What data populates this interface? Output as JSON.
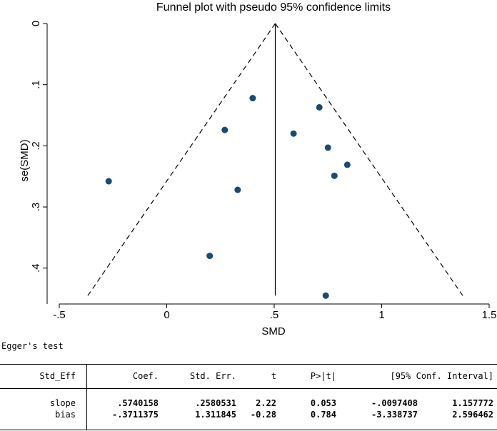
{
  "chart_data": {
    "type": "scatter",
    "title": "Funnel plot with pseudo 95% confidence limits",
    "xlabel": "SMD",
    "ylabel": "se(SMD)",
    "xlim": [
      -0.5,
      1.5
    ],
    "ylim": [
      0,
      0.44
    ],
    "y_inverted": true,
    "xticks": [
      -0.5,
      0,
      0.5,
      1,
      1.5
    ],
    "xtick_labels": [
      "-.5",
      "0",
      ".5",
      "1",
      "1.5"
    ],
    "yticks": [
      0,
      0.1,
      0.2,
      0.3,
      0.4
    ],
    "ytick_labels": [
      "0",
      ".1",
      ".2",
      ".3",
      ".4"
    ],
    "pooled_estimate": 0.505,
    "funnel": {
      "apex_x": 0.505,
      "max_se": 0.445
    },
    "points": [
      {
        "x": 0.4,
        "y": 0.122
      },
      {
        "x": 0.71,
        "y": 0.137
      },
      {
        "x": 0.27,
        "y": 0.174
      },
      {
        "x": 0.59,
        "y": 0.18
      },
      {
        "x": 0.75,
        "y": 0.203
      },
      {
        "x": 0.84,
        "y": 0.231
      },
      {
        "x": 0.78,
        "y": 0.249
      },
      {
        "x": -0.27,
        "y": 0.258
      },
      {
        "x": 0.33,
        "y": 0.272
      },
      {
        "x": 0.2,
        "y": 0.38
      },
      {
        "x": 0.74,
        "y": 0.445
      }
    ],
    "marker_color": "#1a4a73"
  },
  "egger": {
    "title": "Egger's test",
    "headers": {
      "std_eff": "Std_Eff",
      "coef": "Coef.",
      "std_err": "Std. Err.",
      "t": "t",
      "p": "P>|t|",
      "ci": "[95% Conf. Interval]"
    },
    "rows": [
      {
        "label": "slope",
        "coef": ".5740158",
        "std_err": ".2580531",
        "t": "2.22",
        "p": "0.053",
        "ci_low": "-.0097408",
        "ci_high": "1.157772"
      },
      {
        "label": "bias",
        "coef": "-.3711375",
        "std_err": "1.311845",
        "t": "-0.28",
        "p": "0.784",
        "ci_low": "-3.338737",
        "ci_high": "2.596462"
      }
    ]
  }
}
